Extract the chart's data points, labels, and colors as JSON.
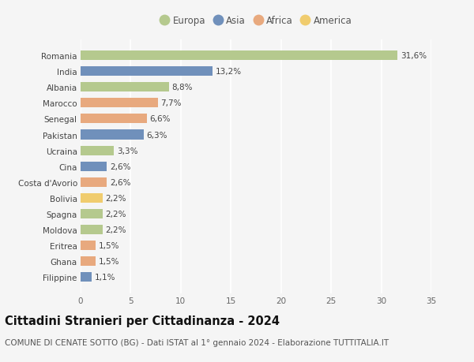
{
  "countries": [
    "Romania",
    "India",
    "Albania",
    "Marocco",
    "Senegal",
    "Pakistan",
    "Ucraina",
    "Cina",
    "Costa d'Avorio",
    "Bolivia",
    "Spagna",
    "Moldova",
    "Eritrea",
    "Ghana",
    "Filippine"
  ],
  "values": [
    31.6,
    13.2,
    8.8,
    7.7,
    6.6,
    6.3,
    3.3,
    2.6,
    2.6,
    2.2,
    2.2,
    2.2,
    1.5,
    1.5,
    1.1
  ],
  "labels": [
    "31,6%",
    "13,2%",
    "8,8%",
    "7,7%",
    "6,6%",
    "6,3%",
    "3,3%",
    "2,6%",
    "2,6%",
    "2,2%",
    "2,2%",
    "2,2%",
    "1,5%",
    "1,5%",
    "1,1%"
  ],
  "continents": [
    "Europa",
    "Asia",
    "Europa",
    "Africa",
    "Africa",
    "Asia",
    "Europa",
    "Asia",
    "Africa",
    "America",
    "Europa",
    "Europa",
    "Africa",
    "Africa",
    "Asia"
  ],
  "continent_colors": {
    "Europa": "#b5c98e",
    "Asia": "#7090bb",
    "Africa": "#e8a97e",
    "America": "#f0cc6e"
  },
  "legend_order": [
    "Europa",
    "Asia",
    "Africa",
    "America"
  ],
  "title": "Cittadini Stranieri per Cittadinanza - 2024",
  "subtitle": "COMUNE DI CENATE SOTTO (BG) - Dati ISTAT al 1° gennaio 2024 - Elaborazione TUTTITALIA.IT",
  "xlim": [
    0,
    35
  ],
  "xticks": [
    0,
    5,
    10,
    15,
    20,
    25,
    30,
    35
  ],
  "background_color": "#f5f5f5",
  "plot_bg_color": "#f5f5f5",
  "grid_color": "#ffffff",
  "title_fontsize": 10.5,
  "subtitle_fontsize": 7.5,
  "label_fontsize": 7.5,
  "tick_fontsize": 7.5,
  "legend_fontsize": 8.5
}
